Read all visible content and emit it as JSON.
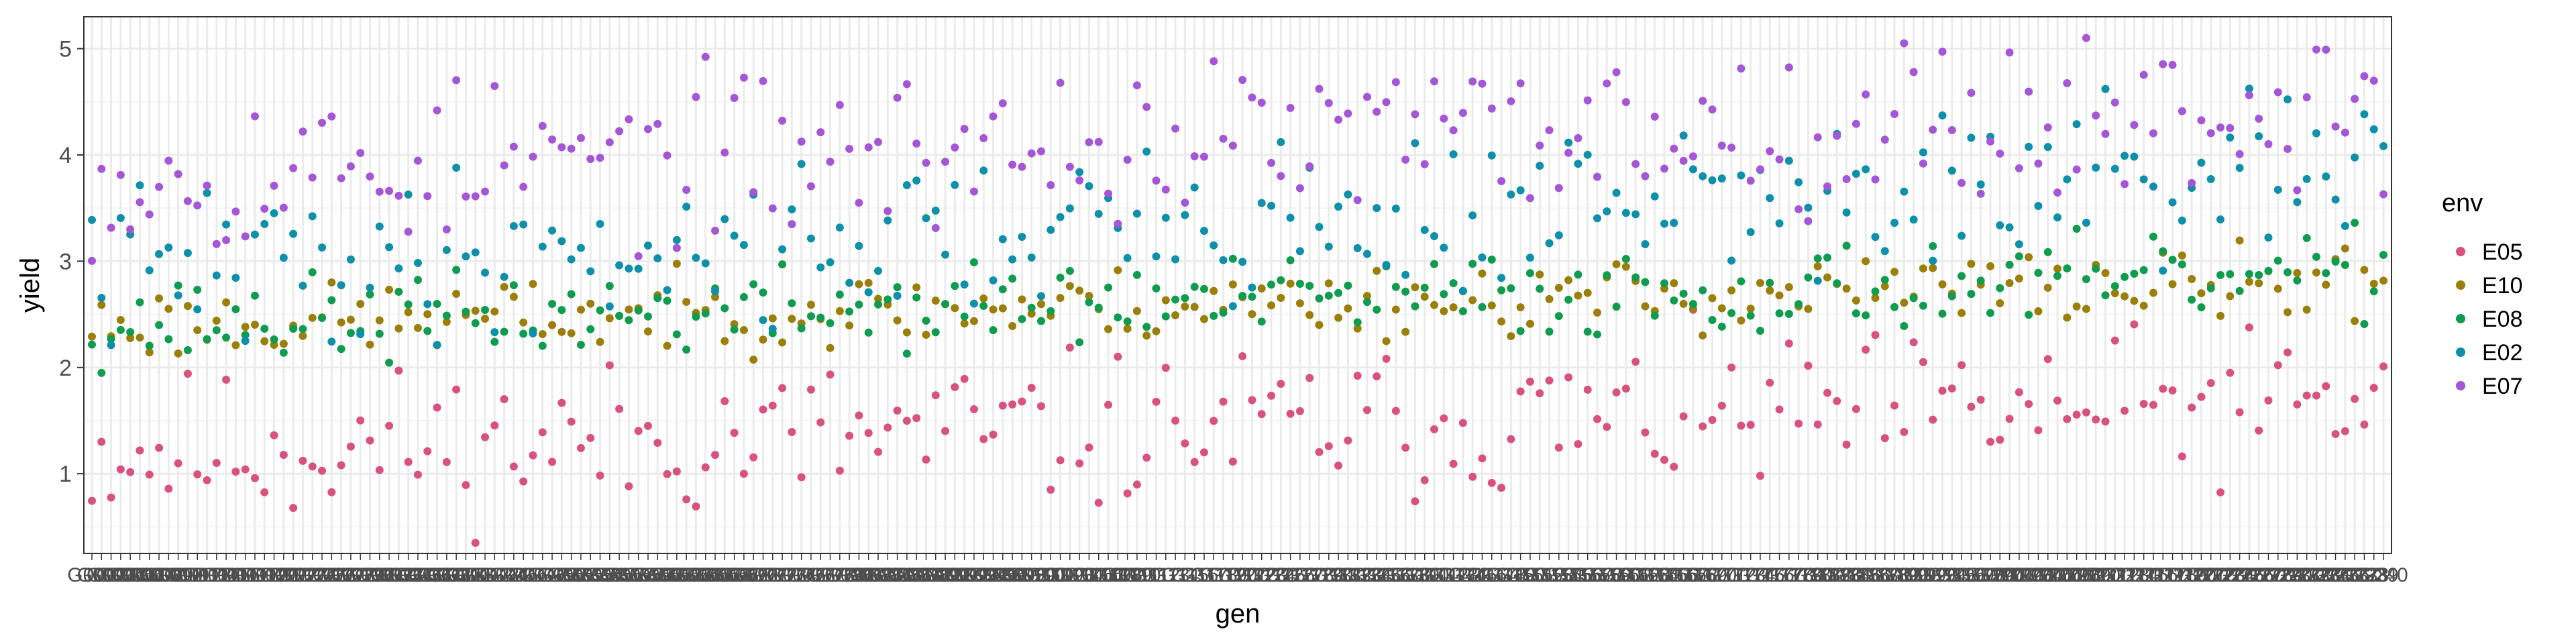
{
  "chart_data": {
    "type": "scatter",
    "xlabel": "gen",
    "ylabel": "yield",
    "ylim": [
      0.25,
      5.3
    ],
    "yticks": [
      1,
      2,
      3,
      4,
      5
    ],
    "grid": true,
    "legend_position": "right",
    "n_genotypes": 240,
    "x_first_label": "G001",
    "x_last_label": "G240",
    "legend": {
      "title": "env"
    },
    "series": [
      {
        "name": "E05",
        "color": "#d8527c",
        "mean": 1.2,
        "trend": 0.45,
        "spread": 0.36,
        "seed": 11
      },
      {
        "name": "E10",
        "color": "#9b7f0a",
        "mean": 2.4,
        "trend": 0.4,
        "spread": 0.17,
        "seed": 23
      },
      {
        "name": "E08",
        "color": "#109c4e",
        "mean": 2.4,
        "trend": 0.45,
        "spread": 0.2,
        "seed": 37
      },
      {
        "name": "E02",
        "color": "#0e8faa",
        "mean": 2.9,
        "trend": 0.9,
        "spread": 0.38,
        "seed": 41
      },
      {
        "name": "E07",
        "color": "#a456d6",
        "mean": 3.8,
        "trend": 0.65,
        "spread": 0.38,
        "seed": 53
      }
    ]
  }
}
